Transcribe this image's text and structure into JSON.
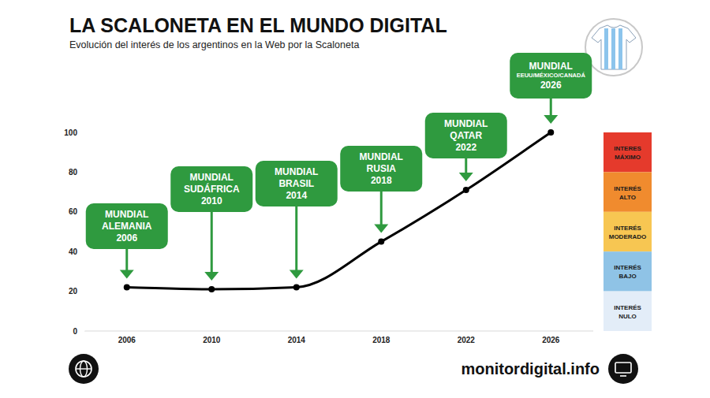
{
  "chart_data": {
    "type": "line",
    "title": "LA SCALONETA EN EL MUNDO DIGITAL",
    "subtitle": "Evolución del interés de los argentinos en la Web por la Scaloneta",
    "categories": [
      "2006",
      "2010",
      "2014",
      "2018",
      "2022",
      "2026"
    ],
    "values": [
      22,
      21,
      22,
      45,
      71,
      100
    ],
    "color": "#000000",
    "marker": "circle",
    "ylim": [
      0,
      100
    ],
    "yticks": [
      0,
      20,
      40,
      60,
      80,
      100
    ],
    "grid": false,
    "annotations": [
      {
        "lines": [
          "MUNDIAL",
          "ALEMANIA",
          "2006"
        ]
      },
      {
        "lines": [
          "MUNDIAL",
          "SUDÁFRICA",
          "2010"
        ]
      },
      {
        "lines": [
          "MUNDIAL",
          "BRASIL",
          "2014"
        ]
      },
      {
        "lines": [
          "MUNDIAL",
          "RUSIA",
          "2018"
        ]
      },
      {
        "lines": [
          "MUNDIAL",
          "QATAR",
          "2022"
        ]
      },
      {
        "lines": [
          "MUNDIAL",
          "EEUU/MÉXICO/CANADÁ",
          "2026"
        ]
      }
    ],
    "bands": [
      {
        "from": 80,
        "to": 100,
        "label": "INTERES MÁXIMO",
        "color": "#e53a2c"
      },
      {
        "from": 60,
        "to": 80,
        "label": "INTERÉS ALTO",
        "color": "#f08b2e"
      },
      {
        "from": 40,
        "to": 60,
        "label": "INTERÉS MODERADO",
        "color": "#f7c652"
      },
      {
        "from": 20,
        "to": 40,
        "label": "INTERÉS BAJO",
        "color": "#8fc3e6"
      },
      {
        "from": 0,
        "to": 20,
        "label": "INTERÉS NULO",
        "color": "#e3edf8"
      }
    ],
    "source": "monitordigital.info"
  }
}
